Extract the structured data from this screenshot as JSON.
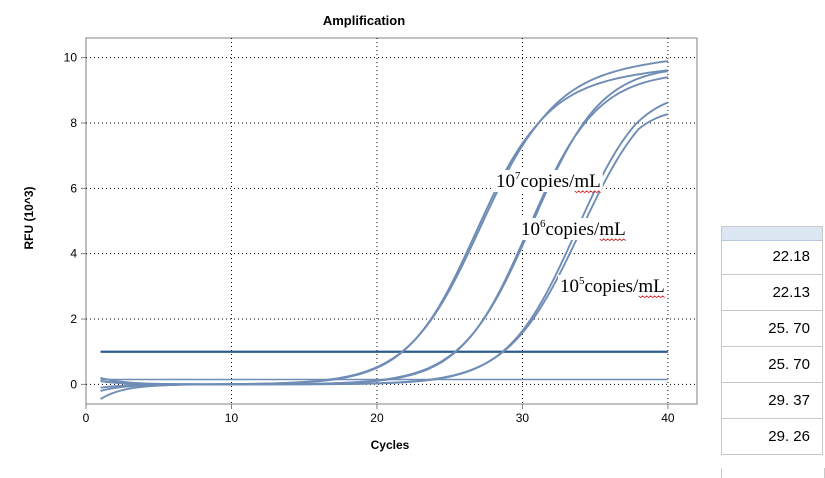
{
  "chart_data": {
    "type": "line",
    "title": "Amplification",
    "xlabel": "Cycles",
    "ylabel": "RFU (10^3)",
    "xlim": [
      0,
      42
    ],
    "ylim": [
      -0.6,
      10.6
    ],
    "xticks": [
      0,
      10,
      20,
      30,
      40
    ],
    "yticks": [
      0,
      2,
      4,
      6,
      8,
      10
    ],
    "grid": true,
    "threshold": 1.0,
    "baseline_line": 0.15,
    "series": [
      {
        "x_start": 1,
        "x_end": 40,
        "start_value": -0.45,
        "plateau": 9.3,
        "midpoint": 26.8,
        "slope": 0.42,
        "top": 9.65
      },
      {
        "x_start": 1,
        "x_end": 40,
        "start_value": 0.1,
        "plateau": 9.6,
        "midpoint": 27.1,
        "slope": 0.4,
        "top": 9.95
      },
      {
        "x_start": 1,
        "x_end": 40,
        "start_value": 0.2,
        "plateau": 9.5,
        "midpoint": 30.4,
        "slope": 0.43,
        "top": 9.55
      },
      {
        "x_start": 1,
        "x_end": 40,
        "start_value": -0.2,
        "plateau": 9.9,
        "midpoint": 30.7,
        "slope": 0.41,
        "top": 9.8
      },
      {
        "x_start": 1,
        "x_end": 40,
        "start_value": 0.1,
        "plateau": 9.4,
        "midpoint": 33.7,
        "slope": 0.42,
        "top": 9.25
      },
      {
        "x_start": 1,
        "x_end": 40,
        "start_value": -0.1,
        "plateau": 9.4,
        "midpoint": 34.0,
        "slope": 0.4,
        "top": 9.05
      }
    ],
    "annotations": [
      {
        "base": "10",
        "exp": "7",
        "rest": "copies/mL"
      },
      {
        "base": "10",
        "exp": "6",
        "rest": "copies/mL"
      },
      {
        "base": "10",
        "exp": "5",
        "rest": "copies/mL"
      }
    ]
  },
  "ct_table": {
    "values": [
      "22.18",
      "22.13",
      "25. 70",
      "25. 70",
      "29. 37",
      "29. 26"
    ]
  },
  "colors": {
    "curve": "#6f8db5",
    "threshold": "#2e5b8f",
    "frame": "#808080",
    "grid": "#000000"
  }
}
